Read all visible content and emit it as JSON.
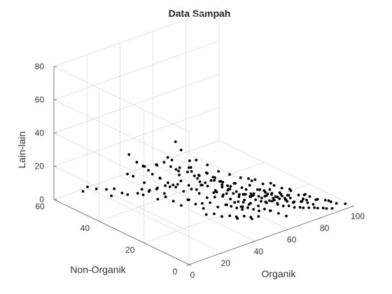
{
  "chart_data": {
    "type": "scatter",
    "title": "Data Sampah",
    "xlabel": "Organik",
    "ylabel": "Non-Organik",
    "zlabel": "Lain-lain",
    "xlim": [
      0,
      100
    ],
    "ylim": [
      0,
      60
    ],
    "zlim": [
      0,
      80
    ],
    "xticks": [
      "0",
      "20",
      "40",
      "60",
      "80",
      "100"
    ],
    "yticks": [
      "0",
      "20",
      "40",
      "60"
    ],
    "zticks": [
      "0",
      "20",
      "40",
      "60",
      "80"
    ],
    "grid": true,
    "marker_color": "#000000",
    "points": [
      [
        4,
        50,
        10
      ],
      [
        4,
        48,
        14
      ],
      [
        8,
        47,
        12
      ],
      [
        10,
        44,
        13
      ],
      [
        12,
        42,
        14
      ],
      [
        14,
        40,
        12
      ],
      [
        16,
        39,
        11
      ],
      [
        18,
        36,
        13
      ],
      [
        13,
        44,
        8
      ],
      [
        20,
        35,
        12
      ],
      [
        22,
        34,
        14
      ],
      [
        24,
        32,
        16
      ],
      [
        26,
        30,
        14
      ],
      [
        28,
        29,
        18
      ],
      [
        30,
        27,
        20
      ],
      [
        26,
        32,
        22
      ],
      [
        22,
        36,
        18
      ],
      [
        18,
        38,
        22
      ],
      [
        28,
        30,
        35
      ],
      [
        30,
        28,
        45
      ],
      [
        32,
        27,
        40
      ],
      [
        34,
        25,
        30
      ],
      [
        36,
        24,
        25
      ],
      [
        35,
        30,
        22
      ],
      [
        38,
        22,
        20
      ],
      [
        40,
        24,
        18
      ],
      [
        42,
        21,
        22
      ],
      [
        44,
        20,
        15
      ],
      [
        46,
        19,
        18
      ],
      [
        48,
        18,
        16
      ],
      [
        50,
        17,
        14
      ],
      [
        52,
        16,
        12
      ],
      [
        54,
        15,
        10
      ],
      [
        56,
        14,
        12
      ],
      [
        58,
        13,
        10
      ],
      [
        60,
        12,
        9
      ],
      [
        62,
        11,
        8
      ],
      [
        64,
        10,
        9
      ],
      [
        66,
        9,
        7
      ],
      [
        68,
        8,
        6
      ],
      [
        70,
        7,
        6
      ],
      [
        72,
        6,
        5
      ],
      [
        74,
        5,
        5
      ],
      [
        76,
        5,
        4
      ],
      [
        78,
        4,
        4
      ],
      [
        80,
        3,
        4
      ],
      [
        82,
        3,
        3
      ],
      [
        84,
        2,
        3
      ],
      [
        86,
        2,
        2
      ],
      [
        88,
        1,
        2
      ],
      [
        96,
        1,
        2
      ],
      [
        92,
        2,
        3
      ],
      [
        90,
        4,
        4
      ],
      [
        85,
        6,
        5
      ],
      [
        80,
        8,
        6
      ],
      [
        75,
        10,
        7
      ],
      [
        70,
        12,
        8
      ],
      [
        65,
        14,
        9
      ],
      [
        60,
        16,
        10
      ],
      [
        55,
        18,
        11
      ],
      [
        50,
        20,
        12
      ],
      [
        45,
        22,
        13
      ],
      [
        40,
        26,
        14
      ],
      [
        38,
        28,
        16
      ],
      [
        36,
        30,
        18
      ],
      [
        34,
        32,
        15
      ],
      [
        32,
        34,
        14
      ],
      [
        30,
        36,
        12
      ],
      [
        28,
        38,
        10
      ],
      [
        26,
        40,
        10
      ],
      [
        44,
        28,
        20
      ],
      [
        46,
        26,
        22
      ],
      [
        48,
        24,
        18
      ],
      [
        50,
        22,
        16
      ],
      [
        52,
        20,
        14
      ],
      [
        54,
        22,
        12
      ],
      [
        56,
        20,
        11
      ],
      [
        58,
        18,
        10
      ],
      [
        60,
        20,
        8
      ],
      [
        62,
        18,
        9
      ],
      [
        64,
        16,
        8
      ],
      [
        66,
        14,
        9
      ],
      [
        68,
        12,
        7
      ],
      [
        70,
        14,
        6
      ],
      [
        72,
        10,
        7
      ],
      [
        74,
        8,
        6
      ],
      [
        76,
        9,
        5
      ],
      [
        78,
        7,
        6
      ],
      [
        80,
        6,
        5
      ],
      [
        82,
        5,
        4
      ],
      [
        42,
        18,
        8
      ],
      [
        44,
        16,
        10
      ],
      [
        46,
        15,
        9
      ],
      [
        48,
        14,
        8
      ],
      [
        50,
        13,
        7
      ],
      [
        52,
        12,
        8
      ],
      [
        54,
        11,
        7
      ],
      [
        56,
        10,
        6
      ],
      [
        58,
        9,
        7
      ],
      [
        60,
        8,
        6
      ],
      [
        40,
        20,
        10
      ],
      [
        38,
        22,
        9
      ],
      [
        36,
        20,
        8
      ],
      [
        34,
        22,
        10
      ],
      [
        32,
        24,
        12
      ],
      [
        30,
        22,
        14
      ],
      [
        28,
        24,
        10
      ],
      [
        26,
        26,
        12
      ],
      [
        24,
        28,
        14
      ],
      [
        22,
        30,
        12
      ],
      [
        42,
        30,
        24
      ],
      [
        44,
        32,
        26
      ],
      [
        40,
        34,
        20
      ],
      [
        38,
        36,
        22
      ],
      [
        46,
        30,
        16
      ],
      [
        48,
        28,
        14
      ],
      [
        50,
        26,
        18
      ],
      [
        52,
        24,
        16
      ],
      [
        54,
        26,
        14
      ],
      [
        56,
        24,
        12
      ],
      [
        58,
        22,
        14
      ],
      [
        60,
        24,
        12
      ],
      [
        62,
        22,
        10
      ],
      [
        64,
        20,
        12
      ],
      [
        66,
        18,
        10
      ],
      [
        68,
        16,
        9
      ],
      [
        70,
        18,
        8
      ],
      [
        72,
        16,
        7
      ],
      [
        74,
        14,
        8
      ],
      [
        76,
        12,
        7
      ],
      [
        35,
        18,
        6
      ],
      [
        37,
        16,
        7
      ],
      [
        39,
        14,
        6
      ],
      [
        41,
        12,
        7
      ],
      [
        43,
        10,
        6
      ],
      [
        45,
        12,
        5
      ],
      [
        47,
        10,
        6
      ],
      [
        49,
        8,
        5
      ],
      [
        51,
        10,
        4
      ],
      [
        53,
        8,
        5
      ],
      [
        48,
        32,
        25
      ],
      [
        52,
        30,
        22
      ],
      [
        56,
        28,
        18
      ],
      [
        60,
        26,
        16
      ],
      [
        64,
        24,
        14
      ],
      [
        68,
        22,
        12
      ],
      [
        72,
        20,
        10
      ],
      [
        76,
        18,
        9
      ],
      [
        80,
        14,
        8
      ],
      [
        84,
        10,
        6
      ],
      [
        30,
        40,
        20
      ],
      [
        32,
        38,
        24
      ],
      [
        34,
        36,
        26
      ],
      [
        36,
        34,
        28
      ],
      [
        38,
        32,
        24
      ],
      [
        40,
        30,
        22
      ],
      [
        42,
        26,
        18
      ],
      [
        44,
        24,
        16
      ],
      [
        46,
        22,
        14
      ],
      [
        48,
        20,
        12
      ],
      [
        55,
        15,
        16
      ],
      [
        57,
        13,
        14
      ],
      [
        59,
        11,
        12
      ],
      [
        61,
        9,
        11
      ],
      [
        63,
        7,
        10
      ],
      [
        65,
        11,
        12
      ],
      [
        67,
        9,
        10
      ],
      [
        69,
        7,
        9
      ],
      [
        71,
        9,
        8
      ],
      [
        73,
        11,
        7
      ],
      [
        42,
        14,
        12
      ],
      [
        44,
        12,
        14
      ],
      [
        46,
        10,
        12
      ],
      [
        48,
        12,
        10
      ],
      [
        50,
        10,
        12
      ],
      [
        52,
        14,
        10
      ],
      [
        54,
        12,
        14
      ],
      [
        56,
        16,
        12
      ],
      [
        58,
        14,
        12
      ],
      [
        60,
        10,
        10
      ],
      [
        20,
        42,
        20
      ],
      [
        24,
        38,
        26
      ],
      [
        27,
        34,
        28
      ],
      [
        33,
        30,
        26
      ],
      [
        37,
        26,
        26
      ],
      [
        39,
        24,
        24
      ],
      [
        41,
        22,
        26
      ],
      [
        43,
        20,
        24
      ],
      [
        45,
        18,
        22
      ],
      [
        47,
        16,
        20
      ],
      [
        62,
        14,
        14
      ],
      [
        64,
        12,
        12
      ],
      [
        66,
        10,
        11
      ],
      [
        68,
        14,
        12
      ],
      [
        70,
        10,
        10
      ],
      [
        72,
        12,
        9
      ],
      [
        74,
        10,
        9
      ],
      [
        76,
        6,
        7
      ],
      [
        78,
        5,
        8
      ],
      [
        80,
        10,
        7
      ],
      [
        25,
        45,
        28
      ],
      [
        27,
        43,
        24
      ],
      [
        29,
        41,
        22
      ],
      [
        31,
        39,
        18
      ],
      [
        33,
        37,
        16
      ],
      [
        35,
        35,
        14
      ],
      [
        37,
        33,
        12
      ],
      [
        39,
        31,
        10
      ],
      [
        41,
        29,
        12
      ],
      [
        43,
        27,
        10
      ],
      [
        45,
        25,
        8
      ],
      [
        47,
        23,
        9
      ],
      [
        49,
        21,
        10
      ],
      [
        51,
        19,
        9
      ],
      [
        53,
        17,
        8
      ],
      [
        55,
        13,
        9
      ],
      [
        57,
        11,
        8
      ],
      [
        59,
        7,
        7
      ],
      [
        61,
        5,
        6
      ],
      [
        63,
        3,
        5
      ],
      [
        86,
        6,
        5
      ],
      [
        88,
        4,
        5
      ],
      [
        90,
        3,
        4
      ],
      [
        84,
        8,
        6
      ],
      [
        82,
        9,
        7
      ],
      [
        66,
        22,
        14
      ],
      [
        70,
        22,
        12
      ],
      [
        74,
        18,
        11
      ],
      [
        78,
        12,
        9
      ],
      [
        78,
        16,
        8
      ]
    ]
  }
}
